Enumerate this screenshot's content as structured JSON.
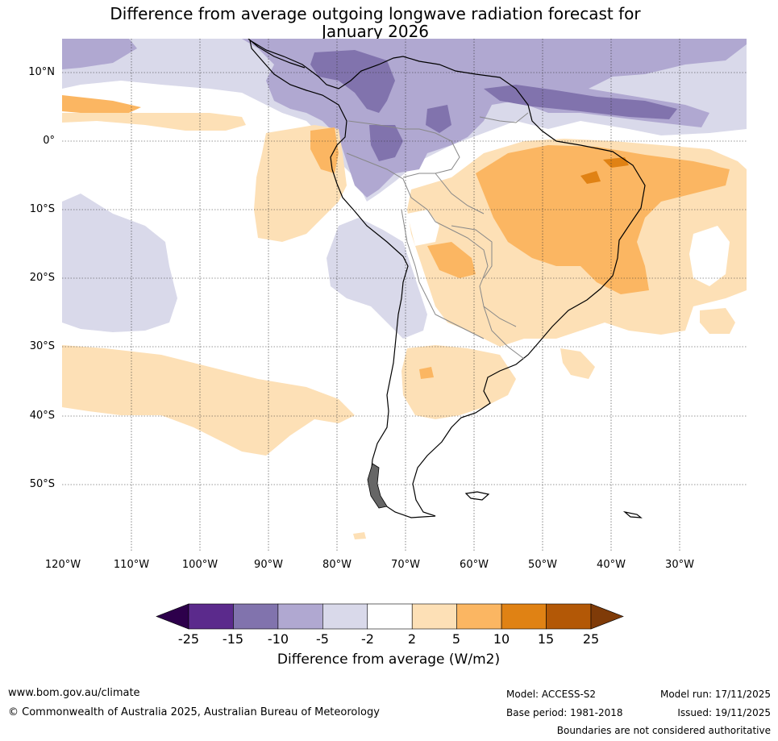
{
  "title": {
    "line1": "Difference from average outgoing longwave radiation forecast for",
    "line2": "January 2026"
  },
  "map": {
    "lat_labels": [
      "10°N",
      "0°",
      "10°S",
      "20°S",
      "30°S",
      "40°S",
      "50°S"
    ],
    "lon_labels": [
      "120°W",
      "110°W",
      "100°W",
      "90°W",
      "80°W",
      "70°W",
      "60°W",
      "50°W",
      "40°W",
      "30°W"
    ]
  },
  "colorbar": {
    "ticks": [
      "-25",
      "-15",
      "-10",
      "-5",
      "-2",
      "2",
      "5",
      "10",
      "15",
      "25"
    ],
    "label": "Difference from average (W/m2)",
    "colors": [
      "#2d004b",
      "#5b2a8c",
      "#8173ad",
      "#b0a8d1",
      "#d9d9ea",
      "#ffffff",
      "#fde0b6",
      "#fbb662",
      "#e08214",
      "#b35806",
      "#7f3b08"
    ]
  },
  "footer": {
    "website": "www.bom.gov.au/climate",
    "copyright": "© Commonwealth of Australia 2025, Australian Bureau of Meteorology",
    "model": "Model: ACCESS-S2",
    "base_period": "Base period: 1981-2018",
    "model_run": "Model run: 17/11/2025",
    "issued": "Issued: 19/11/2025",
    "boundaries": "Boundaries are not considered authoritative"
  }
}
